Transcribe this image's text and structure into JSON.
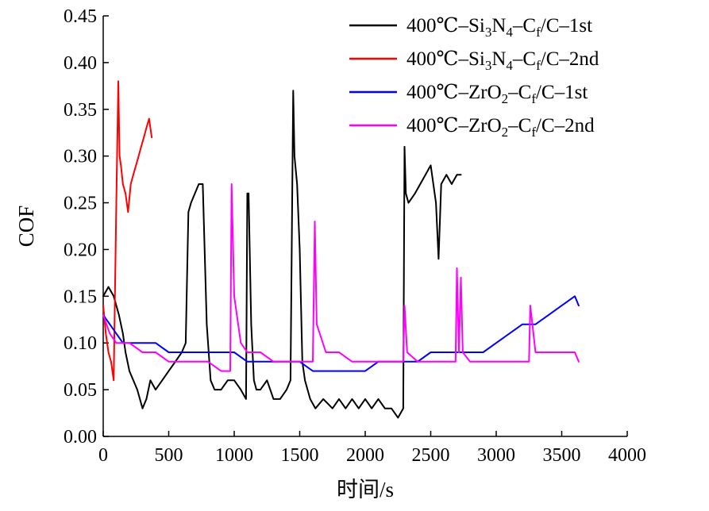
{
  "chart_data": {
    "type": "line",
    "xlabel": "时间/s",
    "ylabel": "COF",
    "xlim": [
      0,
      4000
    ],
    "ylim": [
      0,
      0.45
    ],
    "xticks": [
      "0",
      "500",
      "1000",
      "1500",
      "2000",
      "2500",
      "3000",
      "3500",
      "4000"
    ],
    "yticks": [
      "0.00",
      "0.05",
      "0.10",
      "0.15",
      "0.20",
      "0.25",
      "0.30",
      "0.35",
      "0.40",
      "0.45"
    ],
    "grid": false,
    "legend": "top-right",
    "series": [
      {
        "name": "400℃–Si3N4–Cf/C–1st",
        "legend": {
          "base": "400℃–Si",
          "sub1": "3",
          "mid1": "N",
          "sub2": "4",
          "mid2": "–C",
          "sub3": "f",
          "tail": "/C–1st"
        },
        "color": "#000000",
        "x": [
          0,
          40,
          80,
          120,
          150,
          170,
          200,
          230,
          260,
          300,
          330,
          360,
          400,
          450,
          500,
          550,
          600,
          630,
          650,
          670,
          700,
          730,
          760,
          790,
          820,
          850,
          900,
          950,
          1000,
          1050,
          1090,
          1100,
          1110,
          1130,
          1150,
          1170,
          1200,
          1250,
          1300,
          1350,
          1400,
          1430,
          1450,
          1460,
          1480,
          1500,
          1520,
          1540,
          1560,
          1580,
          1620,
          1680,
          1750,
          1800,
          1850,
          1900,
          1950,
          2000,
          2050,
          2100,
          2150,
          2200,
          2250,
          2290,
          2300,
          2310,
          2330,
          2380,
          2420,
          2460,
          2500,
          2540,
          2560,
          2580,
          2620,
          2660,
          2700,
          2730
        ],
        "y": [
          0.15,
          0.16,
          0.15,
          0.13,
          0.11,
          0.09,
          0.07,
          0.06,
          0.05,
          0.03,
          0.04,
          0.06,
          0.05,
          0.06,
          0.07,
          0.08,
          0.09,
          0.1,
          0.24,
          0.25,
          0.26,
          0.27,
          0.27,
          0.12,
          0.06,
          0.05,
          0.05,
          0.06,
          0.06,
          0.05,
          0.04,
          0.26,
          0.26,
          0.12,
          0.06,
          0.05,
          0.05,
          0.06,
          0.04,
          0.04,
          0.05,
          0.06,
          0.37,
          0.3,
          0.27,
          0.2,
          0.08,
          0.06,
          0.05,
          0.04,
          0.03,
          0.04,
          0.03,
          0.04,
          0.03,
          0.04,
          0.03,
          0.04,
          0.03,
          0.04,
          0.03,
          0.03,
          0.02,
          0.03,
          0.31,
          0.26,
          0.25,
          0.26,
          0.27,
          0.28,
          0.29,
          0.25,
          0.19,
          0.27,
          0.28,
          0.27,
          0.28,
          0.28
        ]
      },
      {
        "name": "400℃–Si3N4–Cf/C–2nd",
        "legend": {
          "base": "400℃–Si",
          "sub1": "3",
          "mid1": "N",
          "sub2": "4",
          "mid2": "–C",
          "sub3": "f",
          "tail": "/C–2nd"
        },
        "color": "#ff0000",
        "x": [
          0,
          20,
          40,
          60,
          80,
          100,
          115,
          125,
          135,
          150,
          170,
          190,
          210,
          230,
          250,
          270,
          290,
          310,
          330,
          350,
          370
        ],
        "y": [
          0.14,
          0.11,
          0.09,
          0.08,
          0.06,
          0.25,
          0.38,
          0.3,
          0.29,
          0.27,
          0.26,
          0.24,
          0.27,
          0.28,
          0.29,
          0.3,
          0.31,
          0.32,
          0.33,
          0.34,
          0.32
        ]
      },
      {
        "name": "400℃–ZrO2–Cf/C–1st",
        "legend": {
          "base": "400℃–ZrO",
          "sub1": "2",
          "mid1": "",
          "sub2": "",
          "mid2": "–C",
          "sub3": "f",
          "tail": "/C–1st"
        },
        "color": "#0000ff",
        "x": [
          0,
          50,
          100,
          150,
          200,
          250,
          300,
          400,
          500,
          600,
          700,
          800,
          900,
          1000,
          1100,
          1200,
          1300,
          1400,
          1500,
          1600,
          1700,
          1800,
          1900,
          2000,
          2100,
          2200,
          2300,
          2400,
          2500,
          2600,
          2700,
          2800,
          2900,
          3000,
          3100,
          3200,
          3300,
          3400,
          3500,
          3600,
          3630
        ],
        "y": [
          0.13,
          0.12,
          0.11,
          0.1,
          0.1,
          0.1,
          0.1,
          0.1,
          0.09,
          0.09,
          0.09,
          0.09,
          0.09,
          0.09,
          0.08,
          0.08,
          0.08,
          0.08,
          0.08,
          0.07,
          0.07,
          0.07,
          0.07,
          0.07,
          0.08,
          0.08,
          0.08,
          0.08,
          0.09,
          0.09,
          0.09,
          0.09,
          0.09,
          0.1,
          0.11,
          0.12,
          0.12,
          0.13,
          0.14,
          0.15,
          0.14
        ]
      },
      {
        "name": "400℃–ZrO2–Cf/C–2nd",
        "legend": {
          "base": "400℃–ZrO",
          "sub1": "2",
          "mid1": "",
          "sub2": "",
          "mid2": "–C",
          "sub3": "f",
          "tail": "/C–2nd"
        },
        "color": "#ff00ff",
        "x": [
          0,
          50,
          100,
          200,
          300,
          400,
          500,
          600,
          700,
          800,
          900,
          970,
          980,
          1000,
          1050,
          1100,
          1200,
          1300,
          1400,
          1500,
          1600,
          1615,
          1630,
          1700,
          1800,
          1900,
          2000,
          2100,
          2200,
          2290,
          2300,
          2320,
          2400,
          2500,
          2600,
          2690,
          2700,
          2715,
          2730,
          2745,
          2800,
          2900,
          3000,
          3100,
          3200,
          3250,
          3260,
          3300,
          3400,
          3500,
          3600,
          3630
        ],
        "y": [
          0.13,
          0.11,
          0.1,
          0.1,
          0.09,
          0.09,
          0.08,
          0.08,
          0.08,
          0.08,
          0.07,
          0.07,
          0.27,
          0.15,
          0.1,
          0.09,
          0.09,
          0.08,
          0.08,
          0.08,
          0.08,
          0.23,
          0.12,
          0.09,
          0.09,
          0.08,
          0.08,
          0.08,
          0.08,
          0.08,
          0.14,
          0.09,
          0.08,
          0.08,
          0.08,
          0.08,
          0.18,
          0.09,
          0.17,
          0.09,
          0.08,
          0.08,
          0.08,
          0.08,
          0.08,
          0.08,
          0.14,
          0.09,
          0.09,
          0.09,
          0.09,
          0.08
        ]
      }
    ]
  }
}
